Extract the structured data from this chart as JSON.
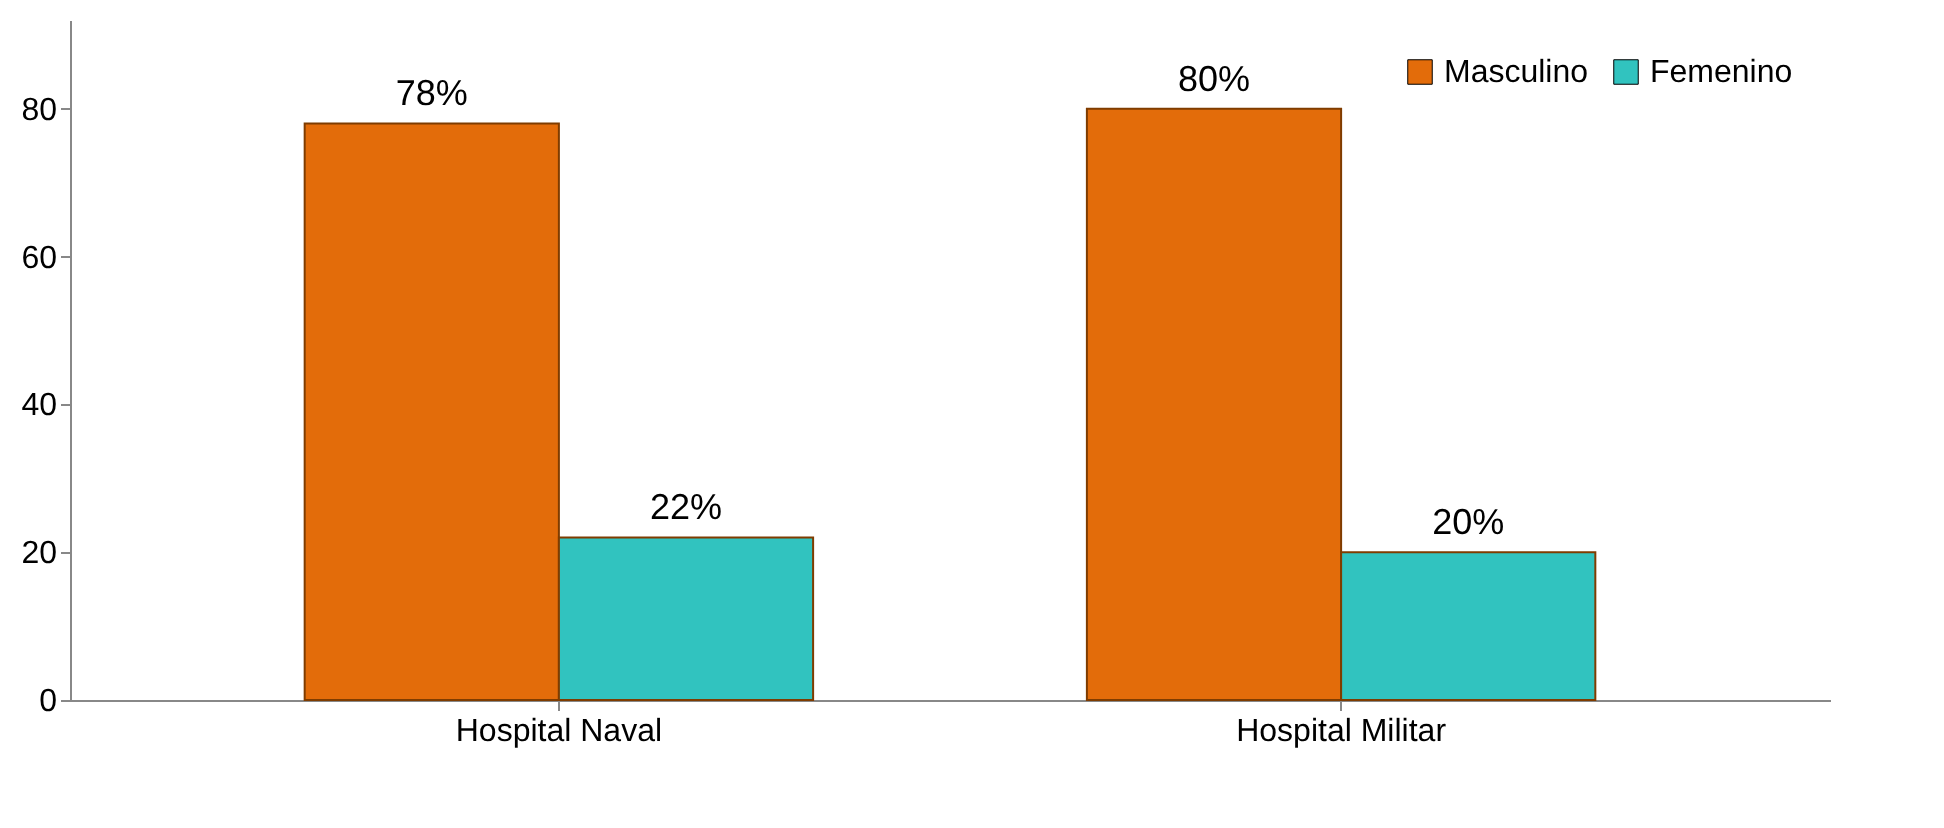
{
  "chart_data": {
    "type": "bar",
    "categories": [
      "Hospital Naval",
      "Hospital Militar"
    ],
    "series": [
      {
        "name": "Masculino",
        "color": "#e36c0a",
        "values": [
          78,
          80
        ],
        "value_labels": [
          "78%",
          "80%"
        ]
      },
      {
        "name": "Femenino",
        "color": "#31c3bf",
        "values": [
          22,
          20
        ],
        "value_labels": [
          "22%",
          "20%"
        ]
      }
    ],
    "ylim": [
      0,
      92
    ],
    "yticks": [
      0,
      20,
      40,
      60,
      80
    ],
    "grid": false,
    "legend": "top right"
  }
}
